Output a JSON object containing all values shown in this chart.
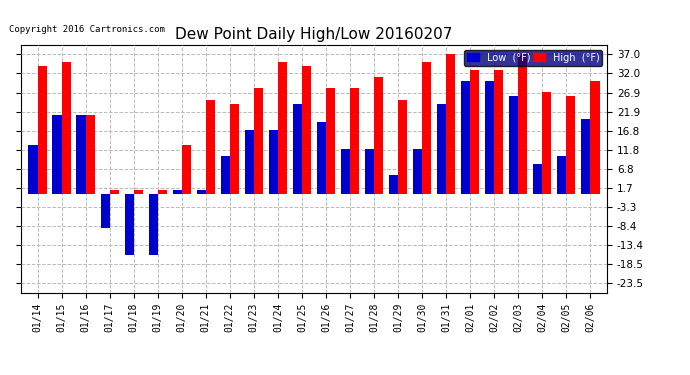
{
  "title": "Dew Point Daily High/Low 20160207",
  "copyright": "Copyright 2016 Cartronics.com",
  "dates": [
    "01/14",
    "01/15",
    "01/16",
    "01/17",
    "01/18",
    "01/19",
    "01/20",
    "01/21",
    "01/22",
    "01/23",
    "01/24",
    "01/25",
    "01/26",
    "01/27",
    "01/28",
    "01/29",
    "01/30",
    "01/31",
    "02/01",
    "02/02",
    "02/03",
    "02/04",
    "02/05",
    "02/06"
  ],
  "high_values": [
    34,
    35,
    21,
    1,
    1,
    1,
    13,
    25,
    24,
    28,
    35,
    34,
    28,
    28,
    31,
    25,
    35,
    37,
    33,
    33,
    37,
    27,
    26,
    30
  ],
  "low_values": [
    13,
    21,
    21,
    -9,
    -16,
    -16,
    1,
    1,
    10,
    17,
    17,
    24,
    19,
    12,
    12,
    5,
    12,
    24,
    30,
    30,
    26,
    8,
    10,
    20
  ],
  "high_color": "#FF0000",
  "low_color": "#0000CC",
  "background_color": "#FFFFFF",
  "plot_bg_color": "#FFFFFF",
  "grid_color": "#BBBBBB",
  "yticks": [
    37.0,
    32.0,
    26.9,
    21.9,
    16.8,
    11.8,
    6.8,
    1.7,
    -3.3,
    -8.4,
    -13.4,
    -18.5,
    -23.5
  ],
  "ylim": [
    -26,
    39.5
  ],
  "bar_width": 0.38,
  "title_fontsize": 11,
  "legend_low_label": "Low  (°F)",
  "legend_high_label": "High  (°F)"
}
